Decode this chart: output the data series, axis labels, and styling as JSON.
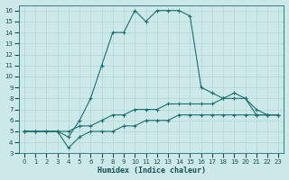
{
  "xlabel": "Humidex (Indice chaleur)",
  "bg_color": "#cce8e8",
  "line_color": "#1a7070",
  "grid_color": "#b8d8d8",
  "xlim": [
    -0.5,
    23.5
  ],
  "ylim": [
    3,
    16.5
  ],
  "xticks": [
    0,
    1,
    2,
    3,
    4,
    5,
    6,
    7,
    8,
    9,
    10,
    11,
    12,
    13,
    14,
    15,
    16,
    17,
    18,
    19,
    20,
    21,
    22,
    23
  ],
  "yticks": [
    3,
    4,
    5,
    6,
    7,
    8,
    9,
    10,
    11,
    12,
    13,
    14,
    15,
    16
  ],
  "series1_x": [
    0,
    1,
    2,
    3,
    4,
    5,
    6,
    7,
    8,
    9,
    10,
    11,
    12,
    13,
    14,
    15,
    16,
    17,
    18,
    19,
    20,
    21,
    22,
    23
  ],
  "series1_y": [
    5,
    5,
    5,
    5,
    4.5,
    6,
    8,
    11,
    14,
    14,
    16,
    15,
    16,
    16,
    16,
    15.5,
    9,
    8.5,
    8,
    8,
    8,
    7,
    6.5,
    6.5
  ],
  "series2_x": [
    0,
    1,
    2,
    3,
    4,
    5,
    6,
    7,
    8,
    9,
    10,
    11,
    12,
    13,
    14,
    15,
    16,
    17,
    18,
    19,
    20,
    21,
    22,
    23
  ],
  "series2_y": [
    5,
    5,
    5,
    5,
    5,
    5.5,
    5.5,
    6,
    6.5,
    6.5,
    7,
    7,
    7,
    7.5,
    7.5,
    7.5,
    7.5,
    7.5,
    8,
    8.5,
    8,
    6.5,
    6.5,
    6.5
  ],
  "series3_x": [
    0,
    1,
    2,
    3,
    4,
    5,
    6,
    7,
    8,
    9,
    10,
    11,
    12,
    13,
    14,
    15,
    16,
    17,
    18,
    19,
    20,
    21,
    22,
    23
  ],
  "series3_y": [
    5,
    5,
    5,
    5,
    3.5,
    4.5,
    5,
    5,
    5,
    5.5,
    5.5,
    6,
    6,
    6,
    6.5,
    6.5,
    6.5,
    6.5,
    6.5,
    6.5,
    6.5,
    6.5,
    6.5,
    6.5
  ]
}
